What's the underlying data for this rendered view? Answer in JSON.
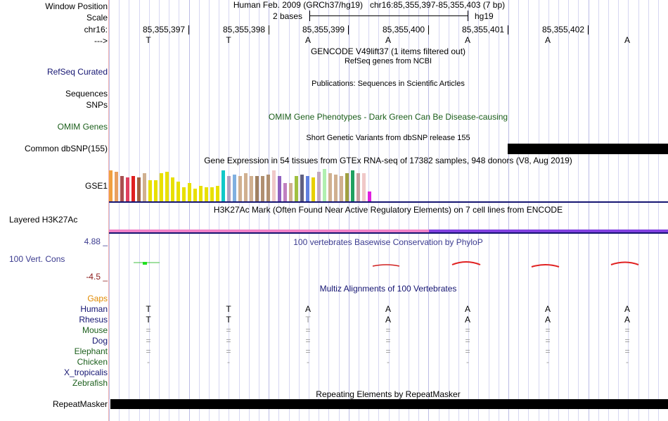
{
  "header": {
    "position_label": "Window Position",
    "assembly": "Human Feb. 2009 (GRCh37/hg19)",
    "position": "chr16:85,355,397-85,355,403 (7 bp)",
    "scale_label": "Scale",
    "scale_text": "2 bases",
    "scale_db": "hg19",
    "chrom_label": "chr16:",
    "coords": [
      "85,355,397",
      "85,355,398",
      "85,355,399",
      "85,355,400",
      "85,355,401",
      "85,355,402"
    ],
    "strand_label": "--->"
  },
  "sequence": [
    "T",
    "T",
    "A",
    "A",
    "A",
    "A",
    "A"
  ],
  "tracks": {
    "gencode_title": "GENCODE V49lift37 (1 items filtered out)",
    "refseq_title": "RefSeq genes from NCBI",
    "refseq_label": "RefSeq Curated",
    "pubs_title": "Publications: Sequences in Scientific Articles",
    "sequences_label": "Sequences",
    "snps_label": "SNPs",
    "omim_title": "OMIM Gene Phenotypes - Dark Green Can Be Disease-causing",
    "omim_label": "OMIM Genes",
    "dbsnp_title": "Short Genetic Variants from dbSNP release 155",
    "dbsnp_label": "Common dbSNP(155)",
    "gtex_title": "Gene Expression in 54 tissues from GTEx RNA-seq of 17382 samples, 948 donors (V8, Aug 2019)",
    "gtex_label": "GSE1",
    "h3k27_title": "H3K27Ac Mark (Often Found Near Active Regulatory Elements) on 7 cell lines from ENCODE",
    "h3k27_label": "Layered H3K27Ac",
    "cons_max": "4.88 _",
    "cons_title": "100 vertebrates Basewise Conservation by PhyloP",
    "cons_label": "100 Vert. Cons",
    "cons_min": "-4.5 _",
    "multiz_title": "Multiz Alignments of 100 Vertebrates",
    "gaps_label": "Gaps",
    "rmsk_title": "Repeating Elements by RepeatMasker",
    "rmsk_label": "RepeatMasker"
  },
  "species": [
    {
      "name": "Human",
      "row": [
        "T",
        "T",
        "A",
        "A",
        "A",
        "A",
        "A"
      ]
    },
    {
      "name": "Rhesus",
      "row": [
        "T",
        "T",
        "T",
        "A",
        "A",
        "A",
        "A"
      ]
    },
    {
      "name": "Mouse",
      "row": [
        "=",
        "=",
        "=",
        "=",
        "=",
        "=",
        "="
      ]
    },
    {
      "name": "Dog",
      "row": [
        "=",
        "=",
        "=",
        "=",
        "=",
        "=",
        "="
      ]
    },
    {
      "name": "Elephant",
      "row": [
        "=",
        "=",
        "=",
        "=",
        "=",
        "=",
        "="
      ]
    },
    {
      "name": "Chicken",
      "row": [
        "-",
        "-",
        "-",
        "-",
        "-",
        "-",
        "-"
      ]
    },
    {
      "name": "X_tropicalis",
      "row": [
        "",
        "",
        "",
        "",
        "",
        "",
        ""
      ]
    },
    {
      "name": "Zebrafish",
      "row": [
        "",
        "",
        "",
        "",
        "",
        "",
        ""
      ]
    }
  ],
  "gtex_bars": [
    {
      "h": 44,
      "c": "#f0a040"
    },
    {
      "h": 42,
      "c": "#e8a060"
    },
    {
      "h": 36,
      "c": "#a85050"
    },
    {
      "h": 34,
      "c": "#e04060"
    },
    {
      "h": 36,
      "c": "#e02020"
    },
    {
      "h": 34,
      "c": "#a06040"
    },
    {
      "h": 40,
      "c": "#d0b090"
    },
    {
      "h": 30,
      "c": "#e8e000"
    },
    {
      "h": 30,
      "c": "#e8e000"
    },
    {
      "h": 40,
      "c": "#e8e000"
    },
    {
      "h": 42,
      "c": "#e8e000"
    },
    {
      "h": 34,
      "c": "#e8e000"
    },
    {
      "h": 28,
      "c": "#e8e000"
    },
    {
      "h": 20,
      "c": "#e8e000"
    },
    {
      "h": 26,
      "c": "#e8e000"
    },
    {
      "h": 18,
      "c": "#e8e000"
    },
    {
      "h": 22,
      "c": "#e8e000"
    },
    {
      "h": 20,
      "c": "#e8e000"
    },
    {
      "h": 20,
      "c": "#e8e000"
    },
    {
      "h": 22,
      "c": "#e8e000"
    },
    {
      "h": 44,
      "c": "#10c8c8"
    },
    {
      "h": 36,
      "c": "#b0a0c0"
    },
    {
      "h": 38,
      "c": "#80b0e0"
    },
    {
      "h": 36,
      "c": "#d0b090"
    },
    {
      "h": 40,
      "c": "#d0b090"
    },
    {
      "h": 36,
      "c": "#d0b090"
    },
    {
      "h": 36,
      "c": "#a08060"
    },
    {
      "h": 36,
      "c": "#b09070"
    },
    {
      "h": 38,
      "c": "#b09070"
    },
    {
      "h": 44,
      "c": "#f0c8c8"
    },
    {
      "h": 36,
      "c": "#9060c0"
    },
    {
      "h": 26,
      "c": "#c080c0"
    },
    {
      "h": 26,
      "c": "#d0b090"
    },
    {
      "h": 36,
      "c": "#a0c040"
    },
    {
      "h": 38,
      "c": "#606080"
    },
    {
      "h": 36,
      "c": "#6080e0"
    },
    {
      "h": 34,
      "c": "#e8d000"
    },
    {
      "h": 42,
      "c": "#c0a8c0"
    },
    {
      "h": 46,
      "c": "#b0f0b0"
    },
    {
      "h": 40,
      "c": "#d0b090"
    },
    {
      "h": 38,
      "c": "#d0b090"
    },
    {
      "h": 36,
      "c": "#d0b090"
    },
    {
      "h": 40,
      "c": "#a0a040"
    },
    {
      "h": 44,
      "c": "#20a060"
    },
    {
      "h": 40,
      "c": "#c8a0a0"
    },
    {
      "h": 40,
      "c": "#f0c8c8"
    },
    {
      "h": 14,
      "c": "#e020e0"
    }
  ]
}
